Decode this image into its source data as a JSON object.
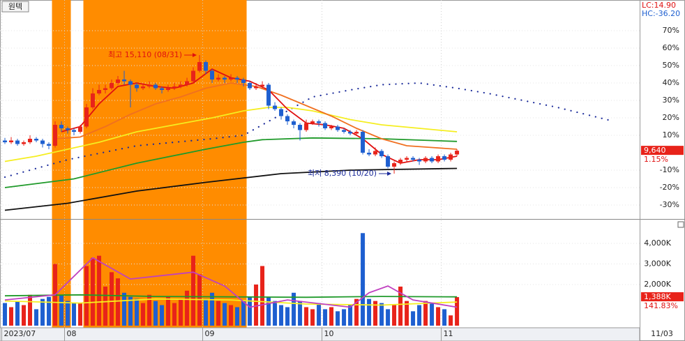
{
  "chart_data": [
    {
      "type": "candlestick",
      "title": "원텍",
      "lc_label": "LC:14.90",
      "hc_label": "HC:-36.20",
      "xlim": [
        -0.78,
        101.1
      ],
      "ylim": [
        -37.6,
        87.6
      ],
      "yticks": [
        {
          "value": 70,
          "label": "70%"
        },
        {
          "value": 60,
          "label": "60%"
        },
        {
          "value": 50,
          "label": "50%"
        },
        {
          "value": 40,
          "label": "40%"
        },
        {
          "value": 30,
          "label": "30%"
        },
        {
          "value": 20,
          "label": "20%"
        },
        {
          "value": 10,
          "label": "10%"
        },
        {
          "value": -10,
          "label": "-10%"
        },
        {
          "value": -20,
          "label": "-20%"
        },
        {
          "value": -30,
          "label": "-30%"
        }
      ],
      "up_color": "#e8231a",
      "down_color": "#1e5fd0",
      "ohlc": [
        [
          7,
          8.5,
          5,
          6
        ],
        [
          6,
          9,
          5,
          7
        ],
        [
          7,
          8,
          4,
          5
        ],
        [
          5,
          7,
          4,
          6
        ],
        [
          6,
          10,
          5,
          8
        ],
        [
          8,
          9,
          6,
          7
        ],
        [
          7,
          8,
          3,
          5
        ],
        [
          5,
          6,
          2,
          4
        ],
        [
          4,
          18,
          3,
          16
        ],
        [
          16,
          18,
          12,
          14
        ],
        [
          14,
          15,
          11,
          13
        ],
        [
          13,
          14,
          10,
          12
        ],
        [
          12,
          16,
          11,
          15
        ],
        [
          15,
          28,
          14,
          26
        ],
        [
          26,
          37,
          25,
          34
        ],
        [
          34,
          39,
          33,
          36
        ],
        [
          36,
          39,
          34,
          37
        ],
        [
          37,
          42,
          36,
          40
        ],
        [
          40,
          44,
          39,
          42
        ],
        [
          42,
          47,
          39,
          41
        ],
        [
          41,
          42,
          26,
          39
        ],
        [
          39,
          40,
          35,
          37
        ],
        [
          37,
          40,
          36,
          38
        ],
        [
          38,
          41,
          37,
          39
        ],
        [
          39,
          40,
          36,
          37
        ],
        [
          37,
          38,
          34,
          36
        ],
        [
          36,
          39,
          35,
          37
        ],
        [
          37,
          40,
          36,
          38
        ],
        [
          38,
          41,
          37,
          39
        ],
        [
          39,
          43,
          38,
          41
        ],
        [
          41,
          49,
          40,
          47
        ],
        [
          47,
          56,
          46,
          52
        ],
        [
          52,
          53,
          45,
          47
        ],
        [
          47,
          48,
          40,
          42
        ],
        [
          42,
          45,
          41,
          43
        ],
        [
          43,
          44,
          40,
          42
        ],
        [
          42,
          45,
          41,
          43
        ],
        [
          43,
          44,
          40,
          42
        ],
        [
          42,
          43,
          38,
          40
        ],
        [
          40,
          41,
          36,
          37
        ],
        [
          37,
          40,
          36,
          38
        ],
        [
          38,
          41,
          37,
          39
        ],
        [
          39,
          40,
          25,
          27
        ],
        [
          27,
          29,
          24,
          25
        ],
        [
          25,
          26,
          19,
          21
        ],
        [
          21,
          22,
          16,
          18
        ],
        [
          18,
          19,
          14,
          16
        ],
        [
          16,
          17,
          7,
          13
        ],
        [
          13,
          19,
          12,
          17
        ],
        [
          17,
          19,
          16,
          18
        ],
        [
          18,
          19,
          15,
          17
        ],
        [
          17,
          18,
          13,
          14
        ],
        [
          14,
          16,
          13,
          15
        ],
        [
          15,
          16,
          12,
          13
        ],
        [
          13,
          14,
          11,
          12
        ],
        [
          12,
          13,
          10,
          11
        ],
        [
          11,
          13,
          10,
          12
        ],
        [
          12,
          13,
          -1,
          0
        ],
        [
          0,
          2,
          -2,
          -1
        ],
        [
          -1,
          3,
          -2,
          1
        ],
        [
          1,
          2,
          -3,
          -2
        ],
        [
          -2,
          -1,
          -9,
          -8
        ],
        [
          -8,
          -5,
          -12,
          -6
        ],
        [
          -6,
          -3,
          -7,
          -4
        ],
        [
          -4,
          -2,
          -5,
          -3
        ],
        [
          -3,
          -2,
          -5,
          -4
        ],
        [
          -4,
          -3,
          -7,
          -5
        ],
        [
          -5,
          -2,
          -6,
          -3
        ],
        [
          -3,
          -2,
          -6,
          -5
        ],
        [
          -5,
          -1,
          -6,
          -2
        ],
        [
          -2,
          -1,
          -5,
          -4
        ],
        [
          -4,
          0,
          -5,
          -1
        ],
        [
          -1,
          2,
          -2,
          1.15
        ]
      ],
      "bands": [
        [
          7.5,
          10.5
        ],
        [
          12.5,
          38.5
        ]
      ],
      "band_color": "#ff8c00",
      "lines": [
        {
          "color": "#1a2a9a",
          "dash": "dotted",
          "x": [
            0,
            10,
            21,
            33,
            38,
            44,
            49,
            55,
            60,
            66,
            72,
            77,
            88,
            97
          ],
          "values": [
            -14,
            -4,
            4,
            8,
            10,
            22,
            32,
            36,
            39,
            40,
            37,
            34,
            26,
            18
          ]
        },
        {
          "color": "#111111",
          "x": [
            0,
            10,
            21,
            32,
            44,
            55,
            72
          ],
          "values": [
            -33,
            -29,
            -22,
            -17,
            -12,
            -10,
            -9
          ]
        },
        {
          "color": "#1f9a2a",
          "x": [
            0,
            11,
            21,
            32,
            38,
            41,
            49,
            60,
            72
          ],
          "values": [
            -20,
            -15,
            -6,
            2,
            6,
            7.5,
            8.5,
            8,
            6.5
          ]
        },
        {
          "color": "#f5ee20",
          "x": [
            0,
            5,
            10,
            15,
            21,
            27,
            33,
            38,
            42,
            45,
            49,
            55,
            60,
            66,
            72
          ],
          "values": [
            -5,
            -2,
            2,
            6,
            12,
            16,
            20,
            24,
            26,
            26,
            24,
            19,
            16,
            14,
            12
          ]
        },
        {
          "color": "#f07020",
          "x": [
            8,
            12,
            16,
            20,
            24,
            28,
            32,
            36,
            40,
            44,
            48,
            52,
            56,
            60,
            64,
            68,
            72
          ],
          "values": [
            8,
            9,
            15,
            22,
            28,
            32,
            37,
            40,
            38,
            33,
            27,
            21,
            14,
            8,
            4,
            3,
            2
          ]
        },
        {
          "color": "#e01010",
          "x": [
            9,
            12,
            15,
            18,
            21,
            24,
            27,
            30,
            33,
            36,
            39,
            42,
            45,
            48,
            51,
            54,
            57,
            60,
            63,
            66,
            69,
            72
          ],
          "values": [
            12,
            15,
            28,
            38,
            40,
            38,
            37,
            40,
            48,
            43,
            41,
            36,
            25,
            17,
            16,
            14,
            8,
            -1,
            -6,
            -4,
            -4,
            -2
          ]
        }
      ],
      "annotations": [
        {
          "text": "최고 15,110 (08/31)",
          "x": 31,
          "y": 56,
          "color": "#e01010"
        },
        {
          "text": "최저 8,390 (10/20)",
          "x": 62,
          "y": -12,
          "color": "#1a2a9a"
        }
      ],
      "last_price": "9,640",
      "last_change": {
        "value": 1.15,
        "label": "1.15%"
      }
    },
    {
      "type": "bar",
      "xlim": [
        -0.78,
        101.1
      ],
      "ylim": [
        0,
        5120
      ],
      "yticks": [
        {
          "value": 4000,
          "label": "4,000K"
        },
        {
          "value": 3000,
          "label": "3,000K"
        },
        {
          "value": 2000,
          "label": "2,000K"
        }
      ],
      "values": [
        1100,
        900,
        1200,
        1000,
        1500,
        800,
        1300,
        1400,
        3000,
        1500,
        1200,
        1100,
        1100,
        2900,
        3300,
        3400,
        1900,
        2600,
        2300,
        1600,
        1400,
        1300,
        1100,
        1500,
        1200,
        1000,
        1400,
        1100,
        1300,
        1700,
        3400,
        2500,
        1300,
        1600,
        1200,
        1100,
        1000,
        900,
        1200,
        1400,
        2000,
        2900,
        1400,
        1200,
        1000,
        900,
        1600,
        1200,
        900,
        800,
        1100,
        800,
        900,
        700,
        800,
        1000,
        1300,
        4500,
        1300,
        1200,
        1100,
        800,
        1000,
        1900,
        1200,
        700,
        1000,
        1200,
        1100,
        900,
        800,
        500,
        1388
      ],
      "value_labels": {
        "72": "1,388K"
      },
      "last_ratio": "141.83%",
      "lines": [
        {
          "color": "#1f9a2a",
          "x": [
            0,
            12,
            24,
            36,
            48,
            60,
            72
          ],
          "values": [
            1450,
            1500,
            1420,
            1400,
            1380,
            1420,
            1400
          ]
        },
        {
          "color": "#f5ee20",
          "x": [
            0,
            12,
            24,
            36,
            48,
            60,
            72
          ],
          "values": [
            1200,
            1100,
            1300,
            1250,
            1050,
            1000,
            1150
          ]
        },
        {
          "color": "#c040c0",
          "x": [
            0,
            8,
            14,
            20,
            30,
            35,
            39,
            45,
            55,
            58,
            61,
            65,
            72
          ],
          "values": [
            1250,
            1500,
            3300,
            2270,
            2600,
            1930,
            900,
            1250,
            900,
            1600,
            1930,
            1250,
            900
          ]
        }
      ],
      "xticks": [
        {
          "value": -0.5,
          "label": "2023/07"
        },
        {
          "value": 9.5,
          "label": "08"
        },
        {
          "value": 31.5,
          "label": "09"
        },
        {
          "value": 50.5,
          "label": "10"
        },
        {
          "value": 69.5,
          "label": "11"
        }
      ],
      "last_date": "11/03"
    }
  ]
}
